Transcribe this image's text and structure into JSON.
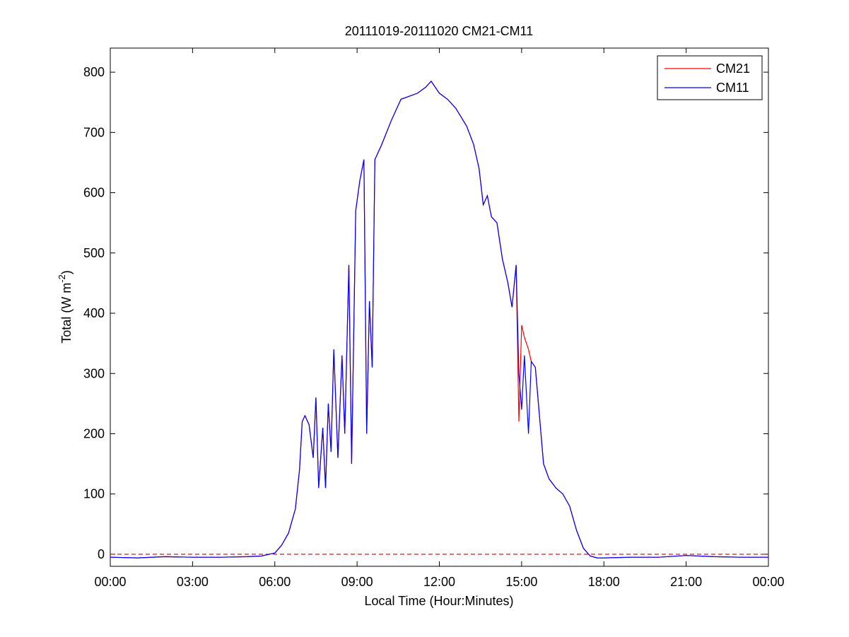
{
  "chart_data": {
    "type": "line",
    "title": "20111019-20111020 CM21-CM11",
    "xlabel": "Local Time (Hour:Minutes)",
    "ylabel": [
      "Total (W m",
      "-2",
      ")"
    ],
    "x": [
      0,
      1,
      2,
      3,
      4,
      5,
      5.5,
      6,
      6.25,
      6.5,
      6.75,
      6.9,
      7.0,
      7.1,
      7.25,
      7.4,
      7.5,
      7.6,
      7.75,
      7.85,
      7.95,
      8.05,
      8.15,
      8.3,
      8.45,
      8.55,
      8.7,
      8.8,
      8.95,
      9.1,
      9.25,
      9.35,
      9.45,
      9.55,
      9.65,
      9.9,
      10.25,
      10.6,
      10.9,
      11.2,
      11.5,
      11.7,
      12.0,
      12.3,
      12.6,
      13.0,
      13.25,
      13.45,
      13.6,
      13.75,
      13.9,
      14.1,
      14.3,
      14.5,
      14.65,
      14.8,
      14.9,
      15.0,
      15.1,
      15.25,
      15.35,
      15.5,
      15.65,
      15.8,
      16.0,
      16.25,
      16.5,
      16.75,
      17.0,
      17.25,
      17.5,
      17.75,
      18,
      19,
      20,
      21,
      22,
      23,
      24
    ],
    "series": [
      {
        "name": "CM21",
        "color": "#ff0000",
        "values": [
          -5,
          -6,
          -4,
          -5,
          -5,
          -4,
          -3,
          2,
          15,
          35,
          75,
          140,
          220,
          230,
          215,
          160,
          260,
          110,
          210,
          110,
          250,
          170,
          340,
          160,
          330,
          200,
          480,
          150,
          570,
          620,
          655,
          200,
          420,
          310,
          655,
          680,
          720,
          755,
          760,
          765,
          775,
          785,
          765,
          755,
          740,
          710,
          680,
          640,
          580,
          595,
          560,
          550,
          490,
          450,
          410,
          480,
          220,
          380,
          360,
          340,
          320,
          310,
          230,
          150,
          125,
          110,
          100,
          80,
          40,
          10,
          -3,
          -6,
          -6,
          -5,
          -5,
          -2,
          -4,
          -5,
          -5
        ]
      },
      {
        "name": "CM11",
        "color": "#0000ff",
        "values": [
          -5,
          -6,
          -4,
          -5,
          -5,
          -4,
          -3,
          2,
          15,
          35,
          75,
          140,
          220,
          230,
          215,
          160,
          260,
          110,
          210,
          110,
          250,
          170,
          340,
          160,
          330,
          200,
          480,
          150,
          570,
          620,
          655,
          200,
          420,
          310,
          655,
          680,
          720,
          755,
          760,
          765,
          775,
          785,
          765,
          755,
          740,
          710,
          680,
          640,
          580,
          595,
          560,
          550,
          490,
          450,
          410,
          480,
          300,
          240,
          330,
          200,
          320,
          310,
          230,
          150,
          125,
          110,
          100,
          80,
          40,
          10,
          -3,
          -6,
          -6,
          -5,
          -5,
          -2,
          -4,
          -5,
          -5
        ]
      }
    ],
    "xlim": [
      0,
      24
    ],
    "xticks": [
      {
        "value": 0,
        "label": "00:00"
      },
      {
        "value": 3,
        "label": "03:00"
      },
      {
        "value": 6,
        "label": "06:00"
      },
      {
        "value": 9,
        "label": "09:00"
      },
      {
        "value": 12,
        "label": "12:00"
      },
      {
        "value": 15,
        "label": "15:00"
      },
      {
        "value": 18,
        "label": "18:00"
      },
      {
        "value": 21,
        "label": "21:00"
      },
      {
        "value": 24,
        "label": "00:00"
      }
    ],
    "ylim": [
      -20,
      840
    ],
    "yticks": [
      0,
      100,
      200,
      300,
      400,
      500,
      600,
      700,
      800
    ],
    "hline": {
      "value": 0,
      "color": "#cc0000"
    },
    "legend": "top-right"
  }
}
